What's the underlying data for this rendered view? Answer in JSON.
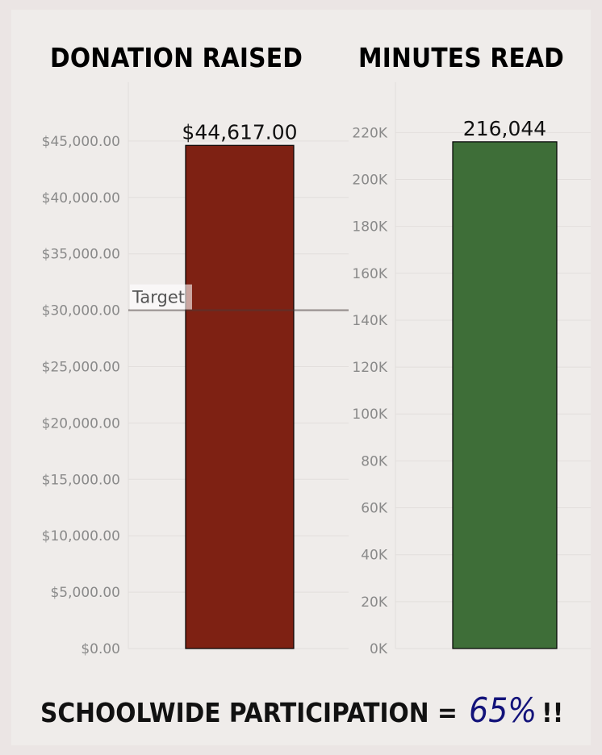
{
  "colors": {
    "background": "#efecea",
    "donation": "#7e2113",
    "minutes": "#3e6e38",
    "percent": "#13137a"
  },
  "chart_data": [
    {
      "type": "bar",
      "title": "DONATION RAISED",
      "categories": [
        ""
      ],
      "values": [
        44617
      ],
      "data_label": "$44,617.00",
      "ylim": [
        0,
        49500
      ],
      "yticks": [
        0,
        5000,
        10000,
        15000,
        20000,
        25000,
        30000,
        35000,
        40000,
        45000
      ],
      "ytick_labels": [
        "$0.00",
        "$5,000.00",
        "$10,000.00",
        "$15,000.00",
        "$20,000.00",
        "$25,000.00",
        "$30,000.00",
        "$35,000.00",
        "$40,000.00",
        "$45,000.00"
      ],
      "reference_line": {
        "label": "Target",
        "value": 30000
      },
      "color": "#7e2113",
      "grid": true
    },
    {
      "type": "bar",
      "title": "MINUTES READ",
      "categories": [
        ""
      ],
      "values": [
        216044
      ],
      "data_label": "216,044",
      "ylim": [
        0,
        238000
      ],
      "yticks": [
        0,
        20000,
        40000,
        60000,
        80000,
        100000,
        120000,
        140000,
        160000,
        180000,
        200000,
        220000
      ],
      "ytick_labels": [
        "0K",
        "20K",
        "40K",
        "60K",
        "80K",
        "100K",
        "120K",
        "140K",
        "160K",
        "180K",
        "200K",
        "220K"
      ],
      "color": "#3e6e38",
      "grid": true
    }
  ],
  "footer": {
    "text": "SCHOOLWIDE PARTICIPATION =",
    "value": "65%",
    "suffix": "!!"
  }
}
